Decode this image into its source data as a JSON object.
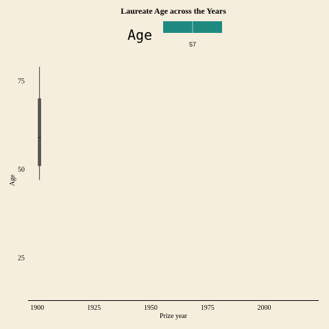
{
  "chart_data": {
    "type": "boxplot",
    "title": "Laureate Age across the Years",
    "xlabel": "Prize year",
    "ylabel": "Age",
    "xlim": [
      1896,
      2024
    ],
    "ylim": [
      13,
      82
    ],
    "x_ticks": [
      1900,
      1925,
      1950,
      1975,
      2000
    ],
    "y_ticks": [
      25,
      50,
      75
    ],
    "grid": false,
    "legend": {
      "title": "Age",
      "position": "top",
      "tick_labels": [
        57
      ],
      "color": "#1f8a80"
    },
    "boxes": [
      {
        "x": 1901,
        "whisker_low": 47,
        "q1": 51,
        "median": 59,
        "q3": 70,
        "whisker_high": 79
      }
    ],
    "colors": {
      "background": "#f5eedd",
      "box": "#555555",
      "legend_fill": "#1f8a80"
    }
  }
}
